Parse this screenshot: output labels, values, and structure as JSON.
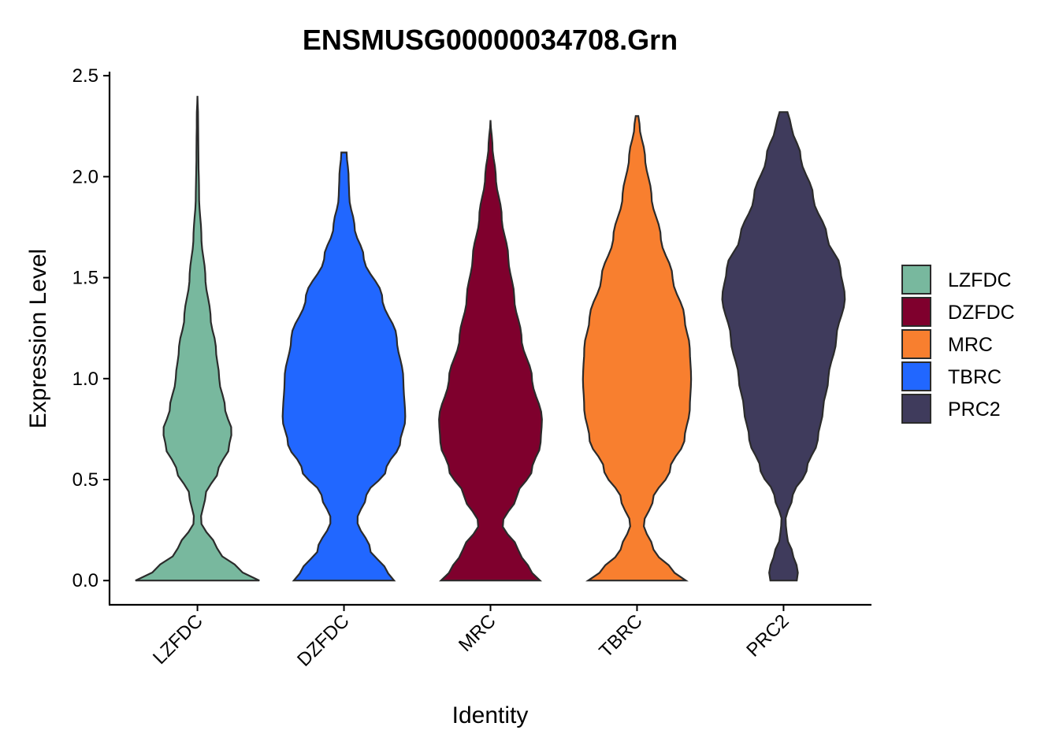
{
  "chart_data": {
    "type": "violin",
    "title": "ENSMUSG00000034708.Grn",
    "xlabel": "Identity",
    "ylabel": "Expression Level",
    "ylim": [
      -0.12,
      2.52
    ],
    "yticks": [
      "0.0",
      "0.5",
      "1.0",
      "1.5",
      "2.0",
      "2.5"
    ],
    "ytick_values": [
      0,
      0.5,
      1.0,
      1.5,
      2.0,
      2.5
    ],
    "grid": false,
    "legend_position": "right",
    "categories": [
      "LZFDC",
      "DZFDC",
      "MRC",
      "TBRC",
      "PRC2"
    ],
    "series": [
      {
        "name": "LZFDC",
        "color": "#78B89E",
        "ymin": 0.0,
        "ymax": 2.4,
        "density_profile": [
          [
            0.0,
            0.94
          ],
          [
            0.06,
            0.6
          ],
          [
            0.15,
            0.3
          ],
          [
            0.3,
            0.05
          ],
          [
            0.42,
            0.12
          ],
          [
            0.55,
            0.32
          ],
          [
            0.66,
            0.48
          ],
          [
            0.74,
            0.52
          ],
          [
            0.85,
            0.42
          ],
          [
            1.0,
            0.33
          ],
          [
            1.15,
            0.28
          ],
          [
            1.3,
            0.2
          ],
          [
            1.5,
            0.12
          ],
          [
            1.7,
            0.06
          ],
          [
            1.9,
            0.025
          ],
          [
            2.1,
            0.015
          ],
          [
            2.3,
            0.01
          ],
          [
            2.4,
            0.0
          ]
        ]
      },
      {
        "name": "DZFDC",
        "color": "#7F002D",
        "ymin": 0.0,
        "ymax": 2.12,
        "density_profile": [
          [
            0.0,
            0.76
          ],
          [
            0.06,
            0.62
          ],
          [
            0.15,
            0.4
          ],
          [
            0.3,
            0.2
          ],
          [
            0.42,
            0.34
          ],
          [
            0.55,
            0.64
          ],
          [
            0.68,
            0.85
          ],
          [
            0.8,
            0.93
          ],
          [
            1.0,
            0.9
          ],
          [
            1.2,
            0.8
          ],
          [
            1.4,
            0.58
          ],
          [
            1.6,
            0.3
          ],
          [
            1.75,
            0.16
          ],
          [
            1.9,
            0.08
          ],
          [
            2.0,
            0.07
          ],
          [
            2.12,
            0.04
          ]
        ]
      },
      {
        "name": "MRC",
        "color": "#F87F2F",
        "ymin": 0.0,
        "ymax": 2.28,
        "density_profile": [
          [
            0.0,
            0.75
          ],
          [
            0.06,
            0.58
          ],
          [
            0.15,
            0.42
          ],
          [
            0.28,
            0.18
          ],
          [
            0.42,
            0.4
          ],
          [
            0.55,
            0.63
          ],
          [
            0.68,
            0.76
          ],
          [
            0.8,
            0.78
          ],
          [
            1.0,
            0.63
          ],
          [
            1.2,
            0.47
          ],
          [
            1.4,
            0.36
          ],
          [
            1.6,
            0.27
          ],
          [
            1.8,
            0.17
          ],
          [
            2.0,
            0.08
          ],
          [
            2.15,
            0.03
          ],
          [
            2.28,
            0.0
          ]
        ]
      },
      {
        "name": "TBRC",
        "color": "#2167FF",
        "ymin": 0.0,
        "ymax": 2.3,
        "density_profile": [
          [
            0.0,
            0.74
          ],
          [
            0.06,
            0.5
          ],
          [
            0.15,
            0.25
          ],
          [
            0.28,
            0.1
          ],
          [
            0.4,
            0.24
          ],
          [
            0.55,
            0.5
          ],
          [
            0.7,
            0.72
          ],
          [
            0.85,
            0.8
          ],
          [
            1.0,
            0.82
          ],
          [
            1.15,
            0.8
          ],
          [
            1.3,
            0.72
          ],
          [
            1.5,
            0.54
          ],
          [
            1.7,
            0.36
          ],
          [
            1.9,
            0.22
          ],
          [
            2.1,
            0.12
          ],
          [
            2.25,
            0.04
          ],
          [
            2.3,
            0.02
          ]
        ]
      },
      {
        "name": "PRC2",
        "color": "#3F3B5C",
        "ymin": 0.0,
        "ymax": 2.32,
        "density_profile": [
          [
            0.0,
            0.2
          ],
          [
            0.05,
            0.22
          ],
          [
            0.12,
            0.15
          ],
          [
            0.22,
            0.05
          ],
          [
            0.3,
            0.03
          ],
          [
            0.42,
            0.14
          ],
          [
            0.55,
            0.35
          ],
          [
            0.7,
            0.52
          ],
          [
            0.85,
            0.6
          ],
          [
            1.0,
            0.68
          ],
          [
            1.2,
            0.8
          ],
          [
            1.4,
            0.93
          ],
          [
            1.55,
            0.86
          ],
          [
            1.7,
            0.66
          ],
          [
            1.9,
            0.45
          ],
          [
            2.1,
            0.26
          ],
          [
            2.25,
            0.12
          ],
          [
            2.32,
            0.06
          ]
        ]
      }
    ]
  },
  "legend": {
    "entries": [
      {
        "label": "LZFDC",
        "color": "#78B89E"
      },
      {
        "label": "DZFDC",
        "color": "#7F002D"
      },
      {
        "label": "MRC",
        "color": "#F87F2F"
      },
      {
        "label": "TBRC",
        "color": "#2167FF"
      },
      {
        "label": "PRC2",
        "color": "#3F3B5C"
      }
    ]
  },
  "fill_colors": [
    "#78B89E",
    "#2167FF",
    "#7F002D",
    "#F87F2F",
    "#3F3B5C"
  ]
}
